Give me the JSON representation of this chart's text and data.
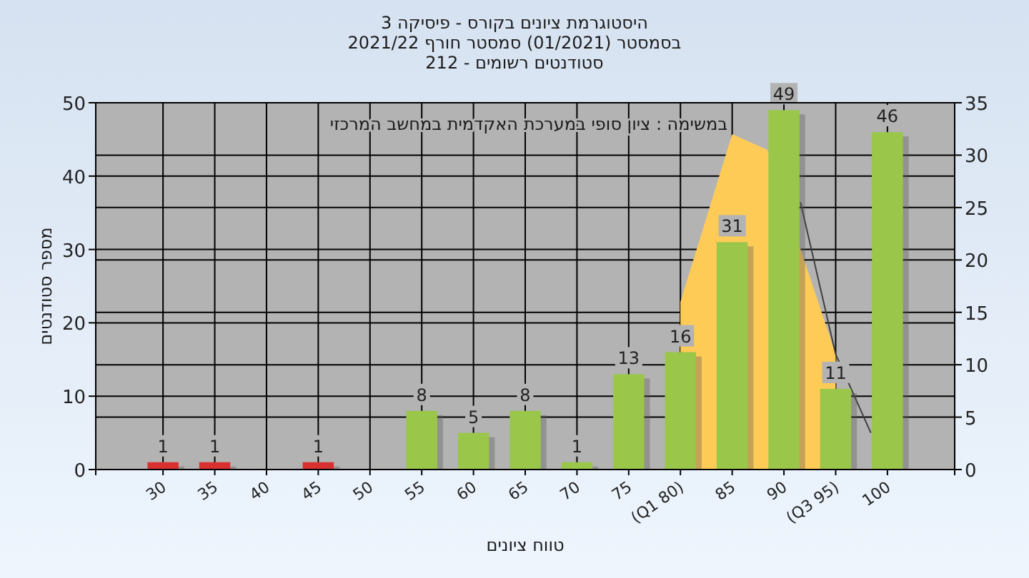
{
  "chart_data": {
    "type": "bar",
    "title": "היסטוגרמת ציונים בקורס - פיסיקה 3",
    "subtitle": "בסמסטר  (01/2021)  סמסטר חורף 2021/22\nסטודנטים רשומים - 212",
    "xlabel": "טווח ציונים",
    "ylabel": "מספר סטודנטים",
    "x": [
      30,
      35,
      40,
      45,
      50,
      55,
      60,
      65,
      70,
      75,
      80,
      85,
      90,
      95,
      100
    ],
    "series": [
      {
        "type": "area",
        "axis": "y2",
        "color": "#ffcb57",
        "x": [
          80,
          85,
          88.4,
          95
        ],
        "values": [
          16,
          32,
          30.5,
          11
        ]
      },
      {
        "type": "line",
        "axis": "y2",
        "color": "#404040",
        "x": [
          91.6,
          95,
          98.4
        ],
        "values": [
          25.5,
          11,
          3.5
        ]
      },
      {
        "colors": [
          "#d93030",
          "#d93030",
          null,
          "#d93030",
          null,
          "#9ac64a",
          "#9ac64a",
          "#9ac64a",
          "#9ac64a",
          "#9ac64a",
          "#9ac64a",
          "#9ac64a",
          "#9ac64a",
          "#9ac64a",
          "#9ac64a"
        ],
        "values": [
          1,
          1,
          null,
          1,
          null,
          8,
          5,
          8,
          1,
          13,
          16,
          31,
          49,
          11,
          46
        ],
        "value_labels": [
          "1",
          "1",
          null,
          "1",
          null,
          "8",
          "5",
          "8",
          "1",
          "13",
          "16",
          "31",
          "49",
          "11",
          "46"
        ]
      }
    ],
    "xlim": [
      23.5,
      106.5
    ],
    "xticks": [
      30,
      35,
      40,
      45,
      50,
      55,
      60,
      65,
      70,
      75,
      {
        "value": 80,
        "label": "(Q1 80)"
      },
      85,
      90,
      {
        "value": 95,
        "label": "(Q3 95)"
      },
      100
    ],
    "ylim": [
      0,
      50
    ],
    "yticks": [
      0,
      10,
      20,
      30,
      40,
      50
    ],
    "y2lim": [
      0,
      35
    ],
    "y2ticks": [
      0,
      5,
      10,
      15,
      20,
      25,
      30,
      35
    ],
    "grid": true,
    "annotations": [
      "במשימה : ציון סופי במערכת האקדמית במחשב המרכזי"
    ]
  }
}
